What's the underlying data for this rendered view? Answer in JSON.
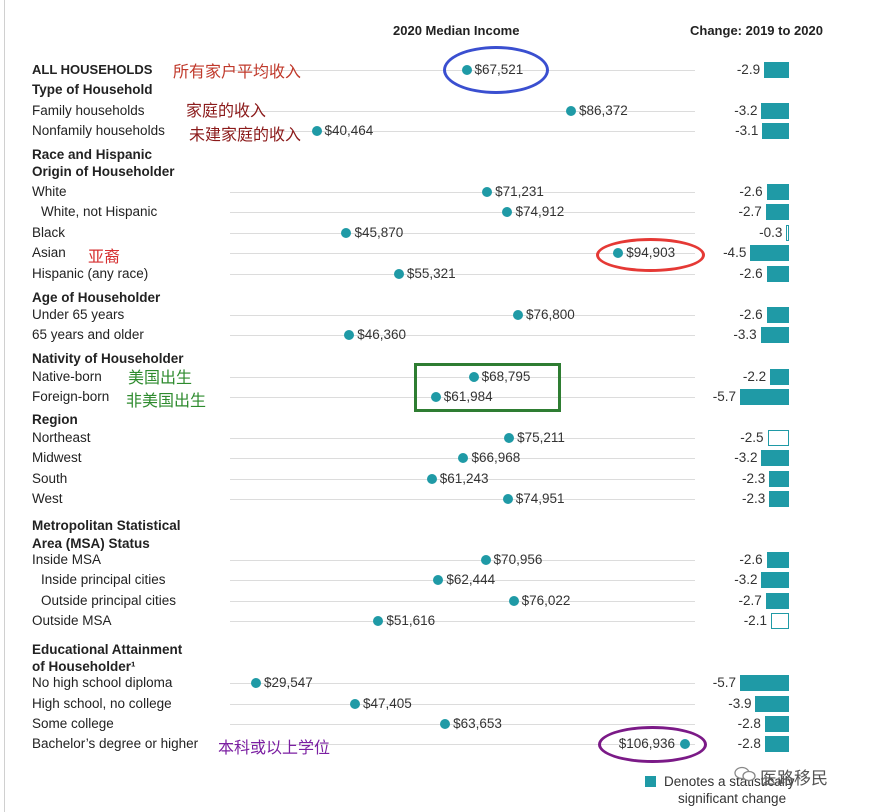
{
  "chart_data": {
    "type": "scatter",
    "column_titles": {
      "income": "2020 Median Income",
      "change": "Change: 2019 to 2020"
    },
    "rows": [
      {
        "label": "ALL HOUSEHOLDS",
        "style": "all",
        "income": 67521,
        "income_label": "$67,521",
        "change": -2.9,
        "change_label": "-2.9",
        "significant": true
      },
      {
        "label": "Type of Household",
        "style": "head"
      },
      {
        "label": "Family households",
        "income": 86372,
        "income_label": "$86,372",
        "change": -3.2,
        "change_label": "-3.2",
        "significant": true
      },
      {
        "label": "Nonfamily households",
        "income": 40464,
        "income_label": "$40,464",
        "change": -3.1,
        "change_label": "-3.1",
        "significant": true
      },
      {
        "label": "Race and Hispanic",
        "style": "head"
      },
      {
        "label": "Origin of Householder",
        "style": "head"
      },
      {
        "label": "White",
        "income": 71231,
        "income_label": "$71,231",
        "change": -2.6,
        "change_label": "-2.6",
        "significant": true
      },
      {
        "label": "White, not Hispanic",
        "indent": true,
        "income": 74912,
        "income_label": "$74,912",
        "change": -2.7,
        "change_label": "-2.7",
        "significant": true
      },
      {
        "label": "Black",
        "income": 45870,
        "income_label": "$45,870",
        "change": -0.3,
        "change_label": "-0.3",
        "significant": false
      },
      {
        "label": "Asian",
        "income": 94903,
        "income_label": "$94,903",
        "change": -4.5,
        "change_label": "-4.5",
        "significant": true
      },
      {
        "label": "Hispanic (any race)",
        "income": 55321,
        "income_label": "$55,321",
        "change": -2.6,
        "change_label": "-2.6",
        "significant": true
      },
      {
        "label": "Age of Householder",
        "style": "head"
      },
      {
        "label": "Under 65 years",
        "income": 76800,
        "income_label": "$76,800",
        "change": -2.6,
        "change_label": "-2.6",
        "significant": true
      },
      {
        "label": "65 years and older",
        "income": 46360,
        "income_label": "$46,360",
        "change": -3.3,
        "change_label": "-3.3",
        "significant": true
      },
      {
        "label": "Nativity of Householder",
        "style": "head"
      },
      {
        "label": "Native-born",
        "income": 68795,
        "income_label": "$68,795",
        "change": -2.2,
        "change_label": "-2.2",
        "significant": true
      },
      {
        "label": "Foreign-born",
        "income": 61984,
        "income_label": "$61,984",
        "change": -5.7,
        "change_label": "-5.7",
        "significant": true
      },
      {
        "label": "Region",
        "style": "head"
      },
      {
        "label": "Northeast",
        "income": 75211,
        "income_label": "$75,211",
        "change": -2.5,
        "change_label": "-2.5",
        "significant": false
      },
      {
        "label": "Midwest",
        "income": 66968,
        "income_label": "$66,968",
        "change": -3.2,
        "change_label": "-3.2",
        "significant": true
      },
      {
        "label": "South",
        "income": 61243,
        "income_label": "$61,243",
        "change": -2.3,
        "change_label": "-2.3",
        "significant": true
      },
      {
        "label": "West",
        "income": 74951,
        "income_label": "$74,951",
        "change": -2.3,
        "change_label": "-2.3",
        "significant": true
      },
      {
        "label": "Metropolitan Statistical",
        "style": "head"
      },
      {
        "label": "Area (MSA) Status",
        "style": "head"
      },
      {
        "label": "Inside MSA",
        "income": 70956,
        "income_label": "$70,956",
        "change": -2.6,
        "change_label": "-2.6",
        "significant": true
      },
      {
        "label": "Inside principal cities",
        "indent": true,
        "income": 62444,
        "income_label": "$62,444",
        "change": -3.2,
        "change_label": "-3.2",
        "significant": true
      },
      {
        "label": "Outside principal cities",
        "indent": true,
        "income": 76022,
        "income_label": "$76,022",
        "change": -2.7,
        "change_label": "-2.7",
        "significant": true
      },
      {
        "label": "Outside MSA",
        "income": 51616,
        "income_label": "$51,616",
        "change": -2.1,
        "change_label": "-2.1",
        "significant": false
      },
      {
        "label": "Educational Attainment",
        "style": "head"
      },
      {
        "label": "of Householder¹",
        "style": "head"
      },
      {
        "label": "No high school diploma",
        "income": 29547,
        "income_label": "$29,547",
        "change": -5.7,
        "change_label": "-5.7",
        "significant": true
      },
      {
        "label": "High school, no college",
        "income": 47405,
        "income_label": "$47,405",
        "change": -3.9,
        "change_label": "-3.9",
        "significant": true
      },
      {
        "label": "Some college",
        "income": 63653,
        "income_label": "$63,653",
        "change": -2.8,
        "change_label": "-2.8",
        "significant": true
      },
      {
        "label": "Bachelor’s degree or higher",
        "income": 106936,
        "income_label": "$106,936",
        "change": -2.8,
        "change_label": "-2.8",
        "significant": true
      }
    ],
    "legend": {
      "line1": "Denotes a statistically",
      "line2": "significant change"
    },
    "annotations": [
      {
        "text": "所有家户平均收入",
        "color": "#c0392b"
      },
      {
        "text": "家庭的收入",
        "color": "#8b1a1a"
      },
      {
        "text": "未建家庭的收入",
        "color": "#8b1a1a"
      },
      {
        "text": "亚裔",
        "color": "#d63031"
      },
      {
        "text": "美国出生",
        "color": "#2e8b2e"
      },
      {
        "text": "非美国出生",
        "color": "#2e8b2e"
      },
      {
        "text": "本科或以上学位",
        "color": "#7b1fa2"
      }
    ],
    "highlights": {
      "blue": "#3a4fd0",
      "red": "#e53935",
      "green": "#2e7d32",
      "purple": "#7b1a87"
    }
  },
  "watermark": "医路移民",
  "colors": {
    "accent": "#1f9aa6"
  }
}
